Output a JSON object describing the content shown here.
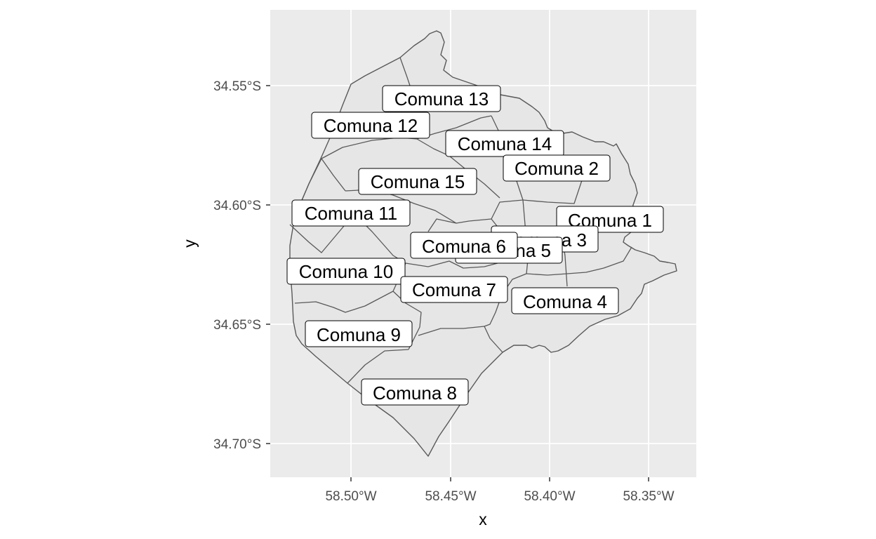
{
  "axes": {
    "x_title": "x",
    "y_title": "y",
    "x_ticks": [
      "58.50°W",
      "58.45°W",
      "58.40°W",
      "58.35°W"
    ],
    "y_ticks": [
      "34.55°S",
      "34.60°S",
      "34.65°S",
      "34.70°S"
    ]
  },
  "colors": {
    "panel_background": "#ebebeb",
    "grid": "#ffffff",
    "polygon_fill": "#e6e6e6",
    "polygon_stroke": "#595959",
    "label_fill": "#ffffff",
    "label_border": "#000000"
  },
  "labels": [
    "Comuna 1",
    "Comuna 2",
    "Comuna 3",
    "Comuna 4",
    "Comuna 5",
    "Comuna 6",
    "Comuna 7",
    "Comuna 8",
    "Comuna 9",
    "Comuna 10",
    "Comuna 11",
    "Comuna 12",
    "Comuna 13",
    "Comuna 14",
    "Comuna 15"
  ]
}
